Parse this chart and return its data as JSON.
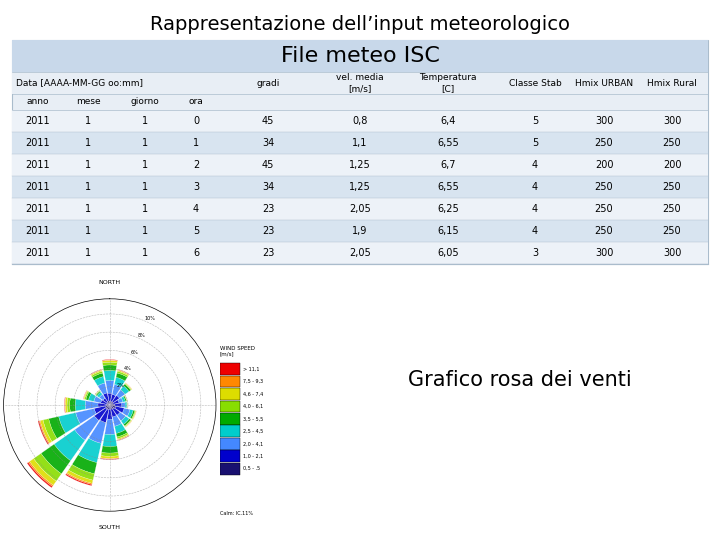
{
  "title": "Rappresentazione dell’input meteorologico",
  "subtitle": "File meteo ISC",
  "data": [
    [
      2011,
      1,
      1,
      0,
      45,
      "0,8",
      "6,4",
      5,
      300,
      300
    ],
    [
      2011,
      1,
      1,
      1,
      34,
      "1,1",
      "6,55",
      5,
      250,
      250
    ],
    [
      2011,
      1,
      1,
      2,
      45,
      "1,25",
      "6,7",
      4,
      200,
      200
    ],
    [
      2011,
      1,
      1,
      3,
      34,
      "1,25",
      "6,55",
      4,
      250,
      250
    ],
    [
      2011,
      1,
      1,
      4,
      23,
      "2,05",
      "6,25",
      4,
      250,
      250
    ],
    [
      2011,
      1,
      1,
      5,
      23,
      "1,9",
      "6,15",
      4,
      250,
      250
    ],
    [
      2011,
      1,
      1,
      6,
      23,
      "2,05",
      "6,05",
      3,
      300,
      300
    ]
  ],
  "table_bg": "#e8eef5",
  "row_light_bg": "#edf2f8",
  "row_dark_bg": "#d8e4f0",
  "subtitle_bg": "#c8d8ea",
  "border_color": "#aabccc",
  "grafico_text": "Grafico rosa dei venti",
  "title_fontsize": 14,
  "subtitle_fontsize": 16,
  "header_fontsize": 6.5,
  "data_fontsize": 7,
  "wind_rose_colors": [
    "#191070",
    "#0000cc",
    "#4488ff",
    "#00cccc",
    "#00aa00",
    "#88dd00",
    "#dddd00",
    "#ff8800",
    "#ee0000"
  ],
  "legend_labels": [
    "> 11,1",
    "7,5 - 9,3",
    "4,6 - 7,4",
    "4,0 - 6,1",
    "3,5 - 5,5",
    "2,5 - 4,5",
    "2,0 - 4,1",
    "1,0 - 2,1",
    "0,5 - .5"
  ],
  "wind_frequencies": [
    5,
    4,
    3,
    2,
    2,
    3,
    3,
    4,
    6,
    9,
    11,
    8,
    5,
    3,
    2,
    4
  ],
  "speed_fracs": [
    [
      0.08,
      0.18,
      0.28,
      0.22,
      0.12,
      0.06,
      0.04,
      0.01,
      0.01
    ],
    [
      0.1,
      0.2,
      0.28,
      0.2,
      0.12,
      0.05,
      0.03,
      0.01,
      0.01
    ],
    [
      0.15,
      0.28,
      0.25,
      0.18,
      0.08,
      0.03,
      0.02,
      0.01,
      0.0
    ],
    [
      0.2,
      0.32,
      0.22,
      0.14,
      0.07,
      0.03,
      0.01,
      0.01,
      0.0
    ],
    [
      0.28,
      0.38,
      0.18,
      0.1,
      0.04,
      0.01,
      0.005,
      0.005,
      0.0
    ],
    [
      0.22,
      0.32,
      0.22,
      0.12,
      0.06,
      0.03,
      0.02,
      0.01,
      0.0
    ],
    [
      0.18,
      0.28,
      0.25,
      0.16,
      0.07,
      0.03,
      0.02,
      0.01,
      0.0
    ],
    [
      0.12,
      0.22,
      0.26,
      0.2,
      0.1,
      0.05,
      0.03,
      0.01,
      0.01
    ],
    [
      0.08,
      0.18,
      0.28,
      0.22,
      0.12,
      0.06,
      0.04,
      0.01,
      0.01
    ],
    [
      0.06,
      0.16,
      0.26,
      0.24,
      0.14,
      0.08,
      0.04,
      0.015,
      0.015
    ],
    [
      0.05,
      0.14,
      0.24,
      0.25,
      0.16,
      0.09,
      0.05,
      0.015,
      0.015
    ],
    [
      0.06,
      0.16,
      0.26,
      0.24,
      0.14,
      0.08,
      0.04,
      0.015,
      0.015
    ],
    [
      0.08,
      0.18,
      0.28,
      0.22,
      0.12,
      0.06,
      0.04,
      0.01,
      0.01
    ],
    [
      0.12,
      0.22,
      0.26,
      0.2,
      0.1,
      0.05,
      0.03,
      0.01,
      0.01
    ],
    [
      0.18,
      0.28,
      0.25,
      0.16,
      0.07,
      0.03,
      0.02,
      0.01,
      0.0
    ],
    [
      0.12,
      0.22,
      0.28,
      0.18,
      0.1,
      0.05,
      0.03,
      0.01,
      0.01
    ]
  ]
}
